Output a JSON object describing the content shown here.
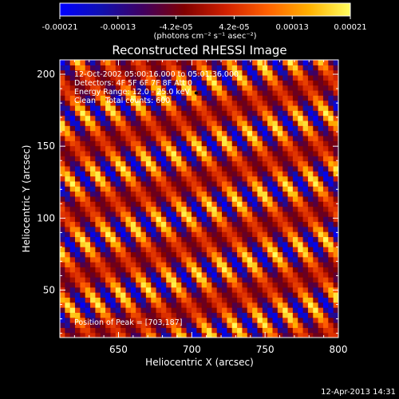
{
  "colorbar": {
    "tick_labels": [
      "-0.00021",
      "-0.00013",
      "-4.2e-05",
      "4.2e-05",
      "0.00013",
      "0.00021"
    ],
    "units_label": "(photons cm⁻² s⁻¹ asec⁻²)",
    "range": [
      -0.00021,
      0.00021
    ],
    "colormap": [
      "#0000ff",
      "#1010b0",
      "#400060",
      "#800000",
      "#d02000",
      "#ff6000",
      "#ffb000",
      "#ffff60"
    ]
  },
  "chart_data": {
    "type": "heatmap",
    "title": "Reconstructed RHESSI Image",
    "xlabel": "Heliocentric X (arcsec)",
    "ylabel": "Heliocentric Y (arcsec)",
    "xlim": [
      610,
      800
    ],
    "ylim": [
      17,
      210
    ],
    "x_ticks": [
      650,
      700,
      750,
      800
    ],
    "y_ticks": [
      50,
      100,
      150,
      200
    ],
    "grid": false,
    "annotations": [
      "12-Oct-2002 05:00:16.000 to 05:01:36.000",
      "Detectors: 4F 5F 6F 7F 8F  Att 0",
      "Energy Range: 12.0 - 25.0 keV",
      "Clean    Total counts: 600"
    ],
    "peak_label": "Position of Peak = [703,187]",
    "peak_position": [
      703,
      187
    ],
    "pattern": {
      "description": "diagonal fringe pattern",
      "fringe_period_arcsec": 17,
      "fringe_angle_deg": 55,
      "modulation_period_arcsec": 45
    }
  },
  "footer": {
    "timestamp": "12-Apr-2013 14:31"
  }
}
